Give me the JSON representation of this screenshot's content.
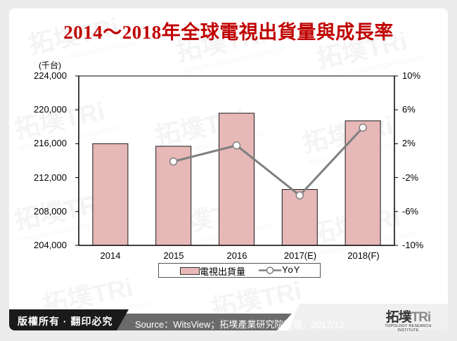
{
  "title": "2014～2018年全球電視出貨量與成長率",
  "unit_label": "(千台)",
  "footer": {
    "copyright": "版權所有 · 翻印必究",
    "source": "Source：WitsView；拓墣產業研究院整理，2017/12",
    "logo_cn": "拓墣",
    "logo_tri": "TRi",
    "logo_en": "TOPOLOGY RESEARCH INSTITUTE"
  },
  "legend": {
    "bar_label": "電視出貨量",
    "line_label": "YoY"
  },
  "colors": {
    "title": "#c00000",
    "bar_fill": "#e6b8b7",
    "bar_stroke": "#1a1a1a",
    "line": "#808080",
    "marker_fill": "#ffffff"
  },
  "chart_data": {
    "type": "bar+line",
    "title": "2014～2018年全球電視出貨量與成長率",
    "categories": [
      "2014",
      "2015",
      "2016",
      "2017(E)",
      "2018(F)"
    ],
    "series": [
      {
        "name": "電視出貨量",
        "type": "bar",
        "axis": "left",
        "unit": "千台",
        "values": [
          216000,
          215700,
          219600,
          210600,
          218700
        ]
      },
      {
        "name": "YoY",
        "type": "line",
        "axis": "right",
        "unit": "%",
        "values": [
          null,
          -0.1,
          1.8,
          -4.1,
          3.9
        ]
      }
    ],
    "ylabel_left": "(千台)",
    "ylim_left": [
      204000,
      224000
    ],
    "yticks_left": [
      "224,000",
      "220,000",
      "216,000",
      "212,000",
      "208,000",
      "204,000"
    ],
    "ylim_right": [
      -10,
      10
    ],
    "yticks_right": [
      "10%",
      "6%",
      "2%",
      "-2%",
      "-6%",
      "-10%"
    ],
    "grid": false,
    "legend_position": "bottom"
  }
}
